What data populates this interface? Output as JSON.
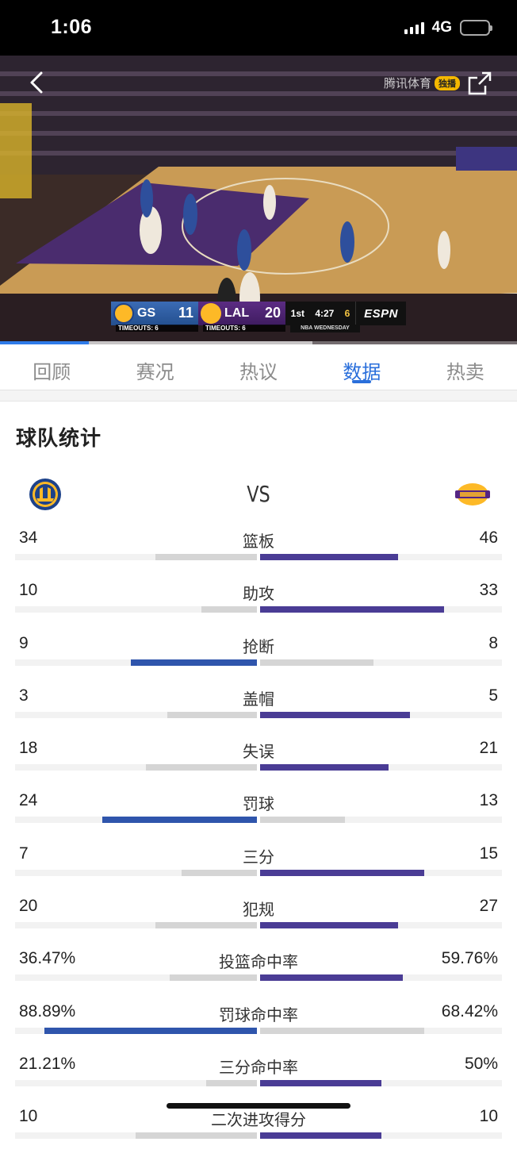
{
  "status_bar": {
    "time": "1:06",
    "network": "4G"
  },
  "video": {
    "brand_text": "腾讯体育",
    "brand_badge": "独播",
    "scorebug": {
      "away_abbr": "GS",
      "away_score": "11",
      "away_timeouts": "TIMEOUTS: 6",
      "home_abbr": "LAL",
      "home_score": "20",
      "home_timeouts": "TIMEOUTS: 6",
      "period": "1st",
      "clock": "4:27",
      "shot_clock": "6",
      "subtitle": "NBA WEDNESDAY",
      "network": "ESPN"
    }
  },
  "tabs": [
    "回顾",
    "赛况",
    "热议",
    "数据",
    "热卖"
  ],
  "active_tab_index": 3,
  "section_title": "球队统计",
  "vs_label": "VS",
  "teams": {
    "left": "Golden State Warriors",
    "right": "Los Angeles Lakers"
  },
  "colors": {
    "left_lead": "#2f55ac",
    "right_lead": "#4a3c95",
    "trail": "#d5d5d5",
    "accent": "#2a6fdb"
  },
  "stats": [
    {
      "label": "篮板",
      "left": "34",
      "right": "46",
      "left_fill": 0.42,
      "right_fill": 0.57,
      "leader": "right"
    },
    {
      "label": "助攻",
      "left": "10",
      "right": "33",
      "left_fill": 0.23,
      "right_fill": 0.76,
      "leader": "right"
    },
    {
      "label": "抢断",
      "left": "9",
      "right": "8",
      "left_fill": 0.52,
      "right_fill": 0.47,
      "leader": "left"
    },
    {
      "label": "盖帽",
      "left": "3",
      "right": "5",
      "left_fill": 0.37,
      "right_fill": 0.62,
      "leader": "right"
    },
    {
      "label": "失误",
      "left": "18",
      "right": "21",
      "left_fill": 0.46,
      "right_fill": 0.53,
      "leader": "right"
    },
    {
      "label": "罚球",
      "left": "24",
      "right": "13",
      "left_fill": 0.64,
      "right_fill": 0.35,
      "leader": "left"
    },
    {
      "label": "三分",
      "left": "7",
      "right": "15",
      "left_fill": 0.31,
      "right_fill": 0.68,
      "leader": "right"
    },
    {
      "label": "犯规",
      "left": "20",
      "right": "27",
      "left_fill": 0.42,
      "right_fill": 0.57,
      "leader": "right"
    },
    {
      "label": "投篮命中率",
      "left": "36.47%",
      "right": "59.76%",
      "left_fill": 0.36,
      "right_fill": 0.59,
      "leader": "right"
    },
    {
      "label": "罚球命中率",
      "left": "88.89%",
      "right": "68.42%",
      "left_fill": 0.88,
      "right_fill": 0.68,
      "leader": "left"
    },
    {
      "label": "三分命中率",
      "left": "21.21%",
      "right": "50%",
      "left_fill": 0.21,
      "right_fill": 0.5,
      "leader": "right"
    },
    {
      "label": "二次进攻得分",
      "left": "10",
      "right": "10",
      "left_fill": 0.5,
      "right_fill": 0.5,
      "leader": "right"
    }
  ]
}
